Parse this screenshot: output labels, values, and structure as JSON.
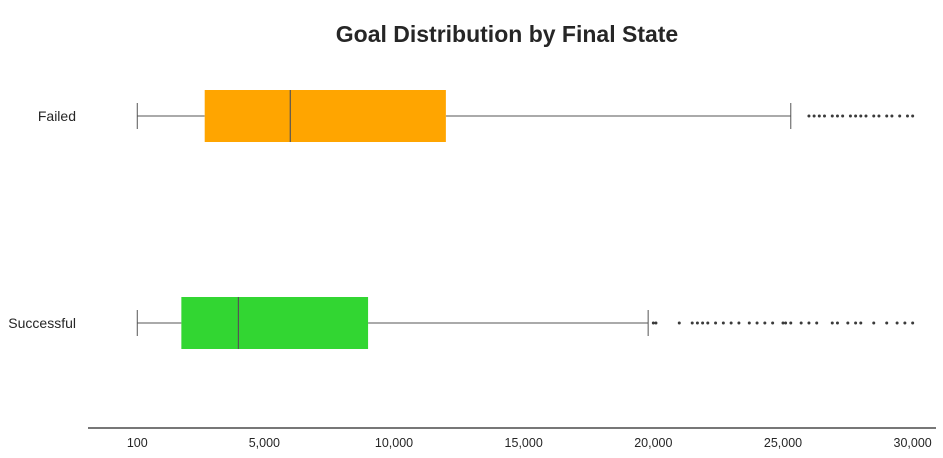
{
  "chart_data": {
    "type": "boxplot",
    "orientation": "horizontal",
    "title": "Goal Distribution by Final State",
    "xlabel": "",
    "ylabel": "",
    "xlim": [
      -1800,
      30900
    ],
    "xticks": [
      100,
      5000,
      10000,
      15000,
      20000,
      25000,
      30000
    ],
    "xtick_labels": [
      "100",
      "5,000",
      "10,000",
      "15,000",
      "20,000",
      "25,000",
      "30,000"
    ],
    "grid": false,
    "categories": [
      "Failed",
      "Successful"
    ],
    "boxes": [
      {
        "category": "Failed",
        "color": "#FFA500",
        "whisker_low": 100,
        "q1": 2700,
        "median": 6000,
        "q3": 12000,
        "whisker_high": 25300,
        "outliers": [
          26000,
          26200,
          26400,
          26600,
          26900,
          27100,
          27300,
          27600,
          27800,
          28000,
          28200,
          28500,
          28700,
          29000,
          29200,
          29500,
          29800,
          30000
        ]
      },
      {
        "category": "Successful",
        "color": "#32D632",
        "whisker_low": 100,
        "q1": 1800,
        "median": 4000,
        "q3": 9000,
        "whisker_high": 19800,
        "outliers": [
          20000,
          20100,
          21000,
          21500,
          21700,
          21900,
          22100,
          22400,
          22700,
          23000,
          23300,
          23700,
          24000,
          24300,
          24600,
          25000,
          25100,
          25300,
          25700,
          26000,
          26300,
          26900,
          27100,
          27500,
          27800,
          28000,
          28500,
          29000,
          29400,
          29700,
          30000
        ]
      }
    ]
  }
}
